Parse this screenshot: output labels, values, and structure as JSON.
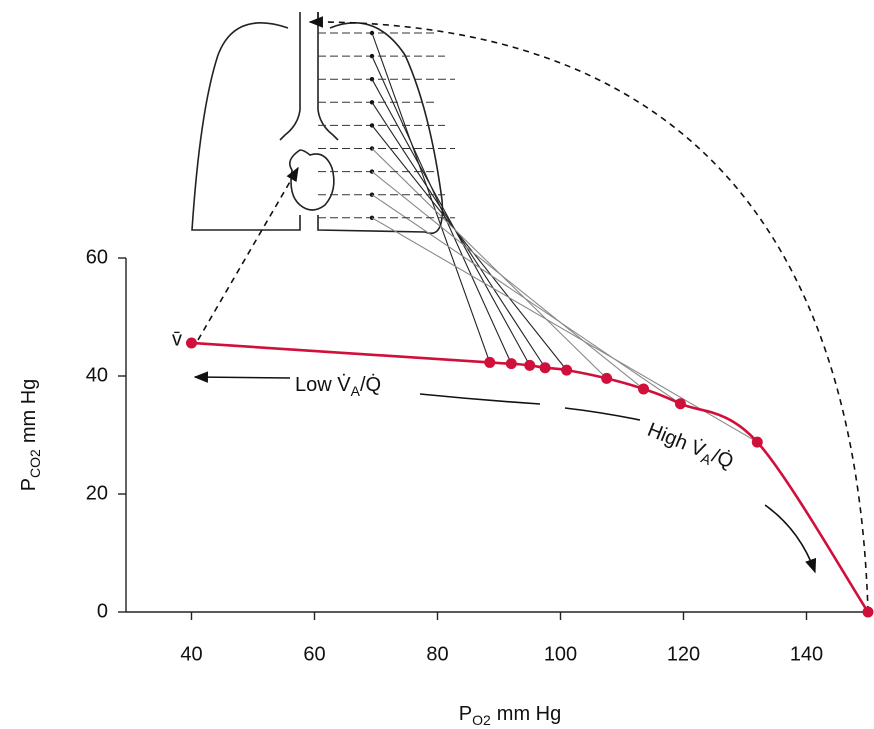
{
  "chart_data": {
    "type": "line",
    "x_label": {
      "main": "P",
      "sub": "O2",
      "unit": "mm Hg"
    },
    "y_label": {
      "main": "P",
      "sub": "CO2",
      "unit": "mm Hg"
    },
    "x": [
      40,
      88.5,
      92,
      95,
      97.5,
      101,
      107.5,
      113.5,
      119.5,
      132,
      150
    ],
    "series": [
      {
        "color": "#d0103a",
        "values": [
          45.6,
          42.3,
          42.1,
          41.8,
          41.4,
          41,
          39.6,
          37.8,
          35.3,
          28.8,
          0
        ]
      }
    ],
    "xlim": [
      30,
      150
    ],
    "ylim": [
      0,
      60
    ],
    "xticks": [
      40,
      60,
      80,
      100,
      120,
      140
    ],
    "yticks": [
      0,
      20,
      40,
      60
    ],
    "annotations": {
      "mixed_venous": "v̄",
      "low": {
        "pre": "Low V̇",
        "sub": "A",
        "post": "/Q̇"
      },
      "high": {
        "pre": "High V̇",
        "sub": "A",
        "post": "/Q̇"
      }
    }
  }
}
